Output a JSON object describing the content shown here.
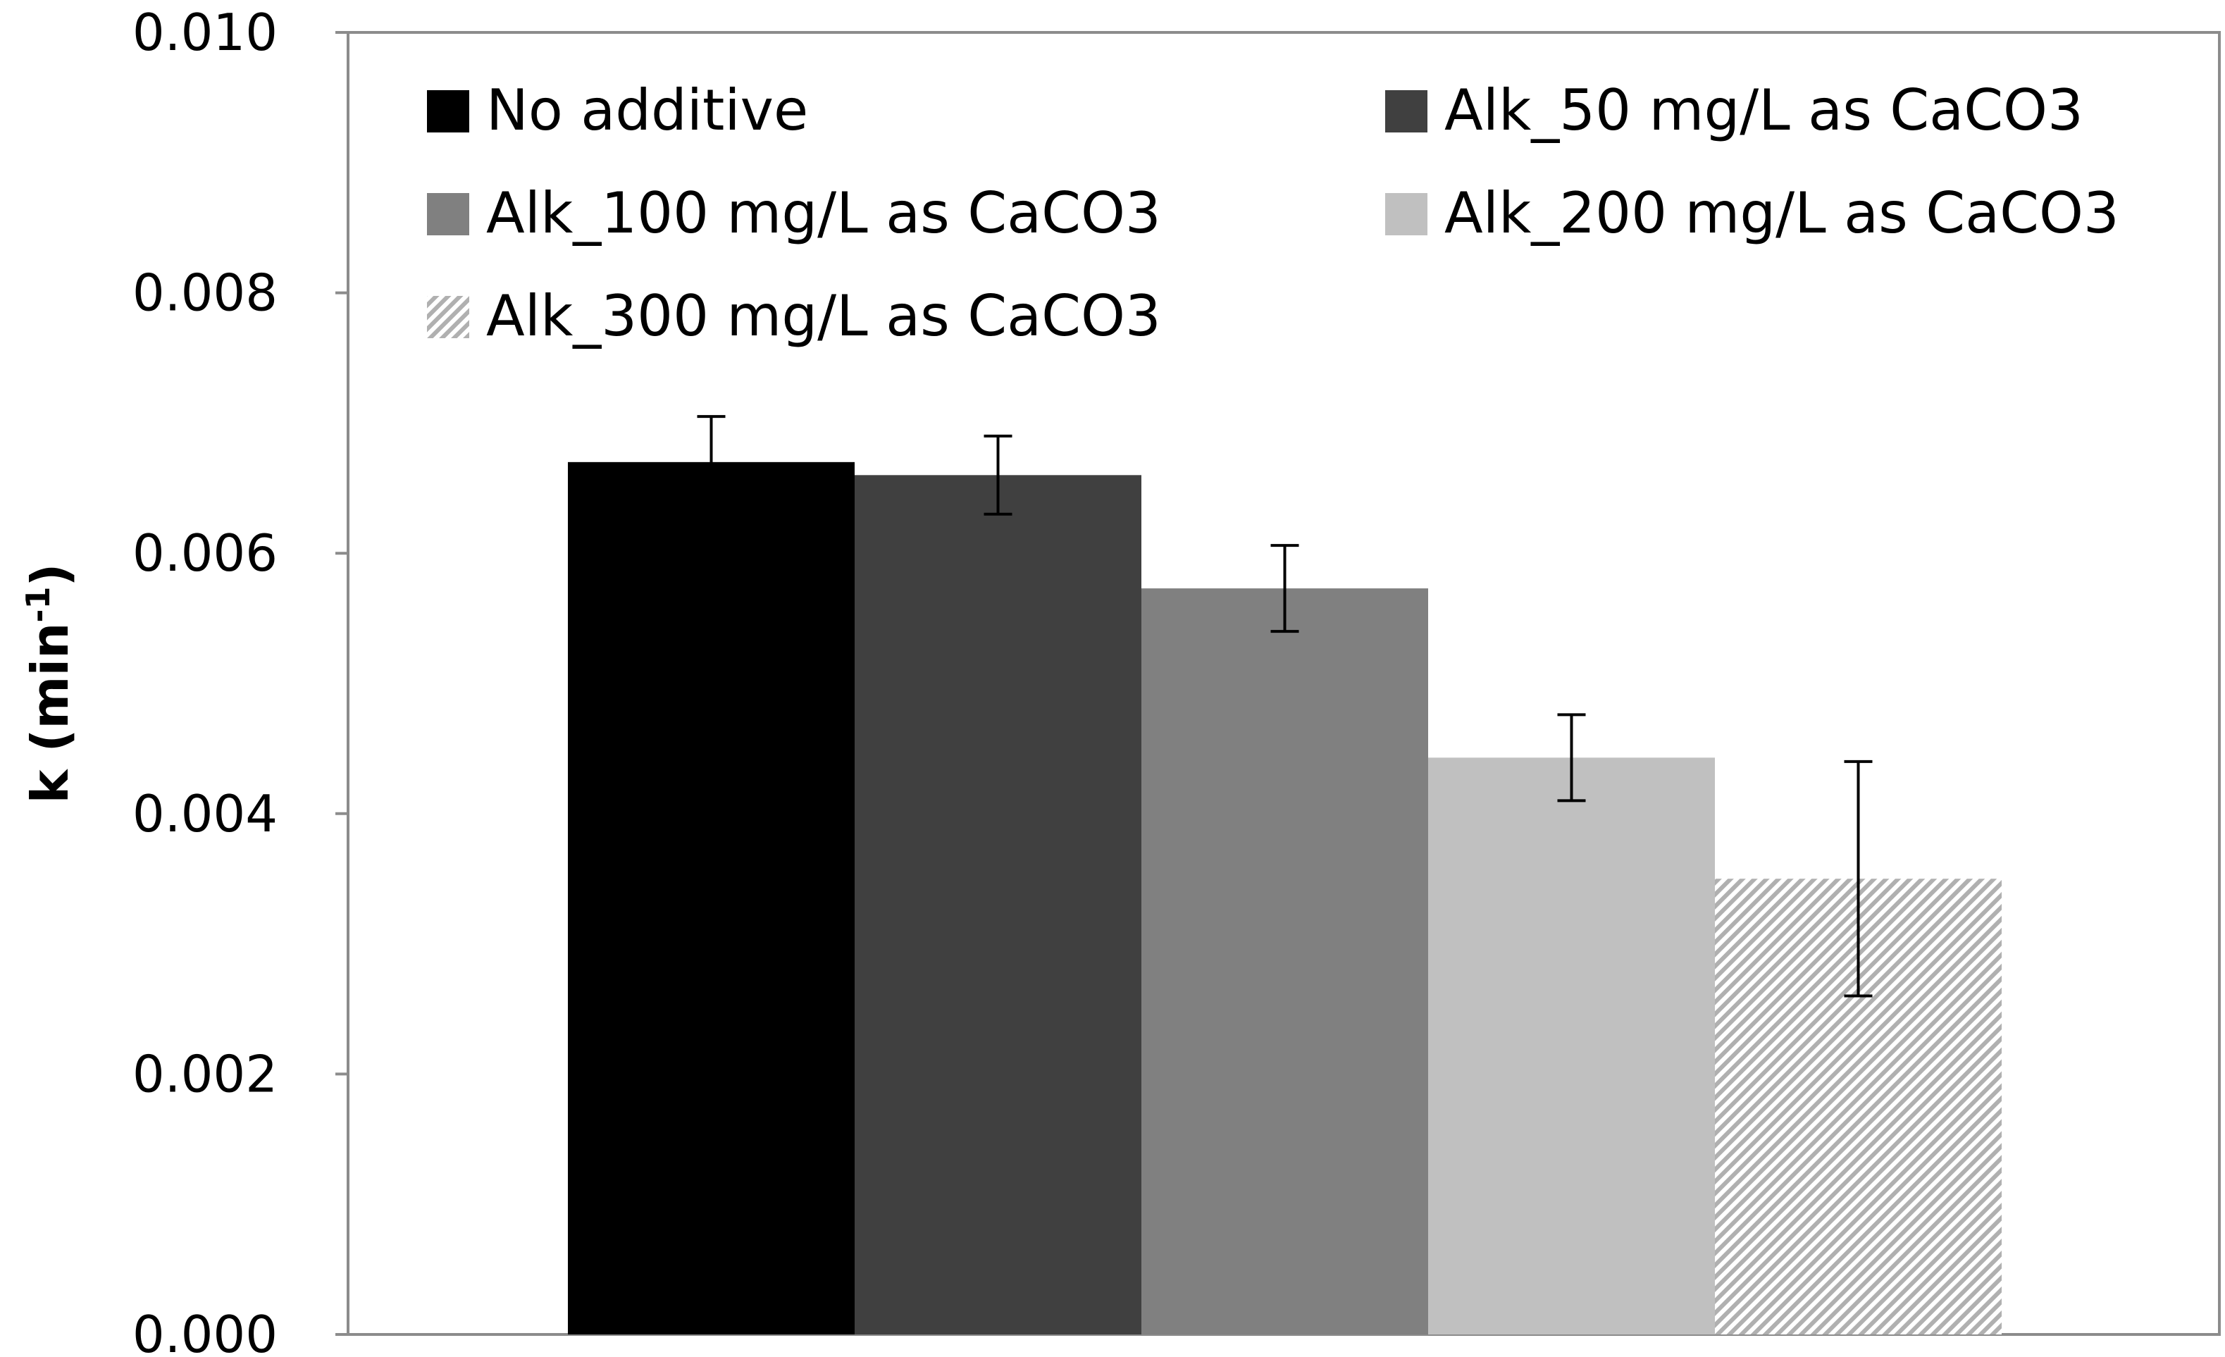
{
  "chart_data": {
    "type": "bar",
    "title": "",
    "xlabel": "",
    "ylabel": {
      "prefix": "k (min",
      "superscript": "-1",
      "suffix": ")"
    },
    "ylim": [
      0,
      0.01
    ],
    "yticks": [
      "0.000",
      "0.002",
      "0.004",
      "0.006",
      "0.008",
      "0.010"
    ],
    "ytick_values": [
      0,
      0.002,
      0.004,
      0.006,
      0.008,
      0.01
    ],
    "grid": false,
    "legend_position": "top",
    "series": [
      {
        "name": "No additive",
        "value": 0.0067,
        "error_low": 0.0064,
        "error_high": 0.00705,
        "color": "#000000",
        "pattern": "solid"
      },
      {
        "name": "Alk_50 mg/L as CaCO3",
        "value": 0.0066,
        "error_low": 0.0063,
        "error_high": 0.0069,
        "color": "#404040",
        "pattern": "solid"
      },
      {
        "name": "Alk_100 mg/L as CaCO3",
        "value": 0.00573,
        "error_low": 0.0054,
        "error_high": 0.00606,
        "color": "#808080",
        "pattern": "solid"
      },
      {
        "name": "Alk_200 mg/L as CaCO3",
        "value": 0.00443,
        "error_low": 0.0041,
        "error_high": 0.00476,
        "color": "#c0c0c0",
        "pattern": "solid"
      },
      {
        "name": "Alk_300 mg/L as CaCO3",
        "value": 0.0035,
        "error_low": 0.0026,
        "error_high": 0.0044,
        "color": "#bdbdbd",
        "pattern": "diagonal-hatch"
      }
    ]
  }
}
